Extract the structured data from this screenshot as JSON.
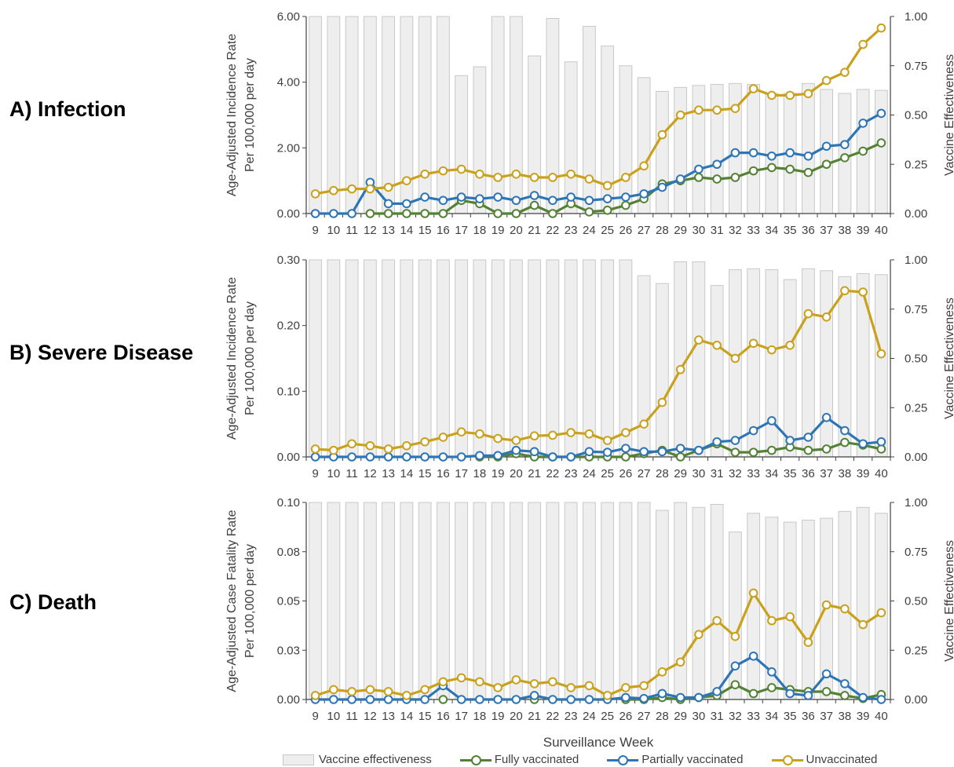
{
  "panel_labels": [
    "A) Infection",
    "B) Severe Disease",
    "C) Death"
  ],
  "xlabel": "Surveillance Week",
  "legend": {
    "ve": "Vaccine effectiveness",
    "full": "Fully vaccinated",
    "partial": "Partially vaccinated",
    "unvax": "Unvaccinated"
  },
  "colors": {
    "ve_fill": "#eeeeee",
    "ve_stroke": "#c8c8c8",
    "full": "#548235",
    "partial": "#2e75b6",
    "unvax": "#c9a11c"
  },
  "chart_data": [
    {
      "type": "bar+line",
      "title": "A) Infection",
      "xlabel": "Surveillance Week",
      "ylabel": [
        "Age-Adjusted Incidence Rate",
        "Per 100,000 per day"
      ],
      "y2label": "Vaccine Effectiveness",
      "ylim": [
        0,
        6
      ],
      "yticks": [
        "0.00",
        "2.00",
        "4.00",
        "6.00"
      ],
      "y2lim": [
        0,
        1
      ],
      "y2ticks": [
        "0.00",
        "0.25",
        "0.50",
        "0.75",
        "1.00"
      ],
      "x": [
        9,
        10,
        11,
        12,
        13,
        14,
        15,
        16,
        17,
        18,
        19,
        20,
        21,
        22,
        23,
        24,
        25,
        26,
        27,
        28,
        29,
        30,
        31,
        32,
        33,
        34,
        35,
        36,
        37,
        38,
        39,
        40
      ],
      "bars": {
        "name": "Vaccine effectiveness",
        "axis": "right",
        "values": [
          1.0,
          1.0,
          1.0,
          1.0,
          1.0,
          1.0,
          1.0,
          1.0,
          0.7,
          0.745,
          1.0,
          1.0,
          0.8,
          0.99,
          0.77,
          0.95,
          0.85,
          0.75,
          0.69,
          0.62,
          0.64,
          0.65,
          0.655,
          0.66,
          0.655,
          0.61,
          0.61,
          0.66,
          0.63,
          0.61,
          0.63,
          0.625
        ]
      },
      "series": [
        {
          "name": "Fully vaccinated",
          "key": "full",
          "values": [
            null,
            null,
            null,
            0.0,
            0.0,
            0.0,
            0.0,
            0.0,
            0.4,
            0.3,
            0.0,
            0.0,
            0.25,
            0.0,
            0.3,
            0.05,
            0.1,
            0.25,
            0.45,
            0.9,
            1.0,
            1.1,
            1.05,
            1.1,
            1.3,
            1.4,
            1.35,
            1.25,
            1.5,
            1.7,
            1.9,
            2.15
          ]
        },
        {
          "name": "Partially vaccinated",
          "key": "partial",
          "values": [
            0.0,
            0.0,
            0.0,
            0.95,
            0.3,
            0.3,
            0.5,
            0.4,
            0.5,
            0.45,
            0.5,
            0.4,
            0.55,
            0.4,
            0.5,
            0.4,
            0.45,
            0.5,
            0.6,
            0.8,
            1.05,
            1.35,
            1.5,
            1.85,
            1.85,
            1.75,
            1.85,
            1.75,
            2.05,
            2.1,
            2.75,
            3.05
          ]
        },
        {
          "name": "Unvaccinated",
          "key": "unvax",
          "values": [
            0.6,
            0.7,
            0.75,
            0.75,
            0.8,
            1.0,
            1.2,
            1.3,
            1.35,
            1.2,
            1.1,
            1.2,
            1.1,
            1.1,
            1.2,
            1.05,
            0.85,
            1.1,
            1.45,
            2.4,
            3.0,
            3.15,
            3.15,
            3.2,
            3.8,
            3.6,
            3.6,
            3.65,
            4.05,
            4.3,
            5.15,
            5.65
          ]
        }
      ]
    },
    {
      "type": "bar+line",
      "title": "B) Severe Disease",
      "xlabel": "Surveillance Week",
      "ylabel": [
        "Age-Adjusted Incidence Rate",
        "Per 100,000 per day"
      ],
      "y2label": "Vaccine Effectiveness",
      "ylim": [
        0,
        0.3
      ],
      "yticks": [
        "0.00",
        "0.10",
        "0.20",
        "0.30"
      ],
      "y2lim": [
        0,
        1
      ],
      "y2ticks": [
        "0.00",
        "0.25",
        "0.50",
        "0.75",
        "1.00"
      ],
      "x": [
        9,
        10,
        11,
        12,
        13,
        14,
        15,
        16,
        17,
        18,
        19,
        20,
        21,
        22,
        23,
        24,
        25,
        26,
        27,
        28,
        29,
        30,
        31,
        32,
        33,
        34,
        35,
        36,
        37,
        38,
        39,
        40
      ],
      "bars": {
        "name": "Vaccine effectiveness",
        "axis": "right",
        "values": [
          1.0,
          1.0,
          1.0,
          1.0,
          1.0,
          1.0,
          1.0,
          1.0,
          1.0,
          1.0,
          1.0,
          1.0,
          1.0,
          1.0,
          1.0,
          1.0,
          1.0,
          1.0,
          0.92,
          0.88,
          0.99,
          0.99,
          0.87,
          0.95,
          0.955,
          0.95,
          0.9,
          0.955,
          0.945,
          0.915,
          0.93,
          0.925
        ]
      },
      "series": [
        {
          "name": "Fully vaccinated",
          "key": "full",
          "values": [
            null,
            null,
            null,
            null,
            null,
            null,
            null,
            null,
            null,
            0.0,
            0.0,
            0.005,
            0.0,
            0.0,
            0.0,
            0.0,
            0.0,
            0.0,
            0.005,
            0.01,
            0.0,
            0.01,
            0.02,
            0.007,
            0.007,
            0.01,
            0.015,
            0.01,
            0.012,
            0.022,
            0.018,
            0.012
          ]
        },
        {
          "name": "Partially vaccinated",
          "key": "partial",
          "values": [
            0.0,
            0.0,
            0.0,
            0.0,
            0.0,
            0.0,
            0.0,
            0.0,
            0.0,
            0.002,
            0.002,
            0.01,
            0.008,
            0.0,
            0.0,
            0.008,
            0.007,
            0.013,
            0.008,
            0.008,
            0.013,
            0.01,
            0.023,
            0.025,
            0.04,
            0.055,
            0.025,
            0.03,
            0.06,
            0.04,
            0.02,
            0.023
          ]
        },
        {
          "name": "Unvaccinated",
          "key": "unvax",
          "values": [
            0.012,
            0.01,
            0.02,
            0.017,
            0.012,
            0.017,
            0.023,
            0.03,
            0.038,
            0.035,
            0.028,
            0.025,
            0.032,
            0.033,
            0.037,
            0.035,
            0.025,
            0.037,
            0.05,
            0.083,
            0.133,
            0.178,
            0.17,
            0.15,
            0.173,
            0.163,
            0.17,
            0.218,
            0.213,
            0.253,
            0.251,
            0.157
          ]
        }
      ]
    },
    {
      "type": "bar+line",
      "title": "C) Death",
      "xlabel": "Surveillance Week",
      "ylabel": [
        "Age-Adjusted Case Fatality Rate",
        "Per 100,000 per day"
      ],
      "y2label": "Vaccine Effectiveness",
      "ylim": [
        0,
        0.1
      ],
      "yticks": [
        "0.00",
        "0.03",
        "0.05",
        "0.08",
        "0.10"
      ],
      "y2lim": [
        0,
        1
      ],
      "y2ticks": [
        "0.00",
        "0.25",
        "0.50",
        "0.75",
        "1.00"
      ],
      "x": [
        9,
        10,
        11,
        12,
        13,
        14,
        15,
        16,
        17,
        18,
        19,
        20,
        21,
        22,
        23,
        24,
        25,
        26,
        27,
        28,
        29,
        30,
        31,
        32,
        33,
        34,
        35,
        36,
        37,
        38,
        39,
        40
      ],
      "bars": {
        "name": "Vaccine effectiveness",
        "axis": "right",
        "values": [
          1.0,
          1.0,
          1.0,
          1.0,
          1.0,
          1.0,
          1.0,
          1.0,
          1.0,
          1.0,
          1.0,
          1.0,
          1.0,
          1.0,
          1.0,
          1.0,
          1.0,
          1.0,
          1.0,
          0.96,
          1.0,
          0.975,
          0.99,
          0.85,
          0.945,
          0.925,
          0.9,
          0.91,
          0.92,
          0.955,
          0.975,
          0.945
        ]
      },
      "series": [
        {
          "name": "Fully vaccinated",
          "key": "full",
          "values": [
            null,
            null,
            null,
            null,
            null,
            null,
            null,
            0.0,
            null,
            null,
            null,
            null,
            0.0,
            null,
            null,
            null,
            null,
            0.0,
            0.0,
            0.001,
            0.0,
            0.001,
            0.002,
            0.0075,
            0.003,
            0.006,
            0.005,
            0.004,
            0.004,
            0.002,
            0.0005,
            0.0025
          ]
        },
        {
          "name": "Partially vaccinated",
          "key": "partial",
          "values": [
            0.0,
            0.0,
            0.0,
            0.0,
            0.0,
            0.0,
            0.0,
            0.007,
            0.0,
            0.0,
            0.0,
            0.0,
            0.002,
            0.0,
            0.0,
            0.0,
            0.0,
            0.001,
            0.0005,
            0.003,
            0.001,
            0.001,
            0.004,
            0.017,
            0.022,
            0.014,
            0.003,
            0.002,
            0.013,
            0.008,
            0.001,
            0.0
          ]
        },
        {
          "name": "Unvaccinated",
          "key": "unvax",
          "values": [
            0.002,
            0.005,
            0.004,
            0.005,
            0.004,
            0.002,
            0.005,
            0.009,
            0.011,
            0.009,
            0.006,
            0.01,
            0.008,
            0.009,
            0.006,
            0.007,
            0.002,
            0.006,
            0.007,
            0.014,
            0.019,
            0.033,
            0.04,
            0.032,
            0.054,
            0.04,
            0.042,
            0.029,
            0.048,
            0.046,
            0.038,
            0.044
          ]
        }
      ]
    }
  ]
}
